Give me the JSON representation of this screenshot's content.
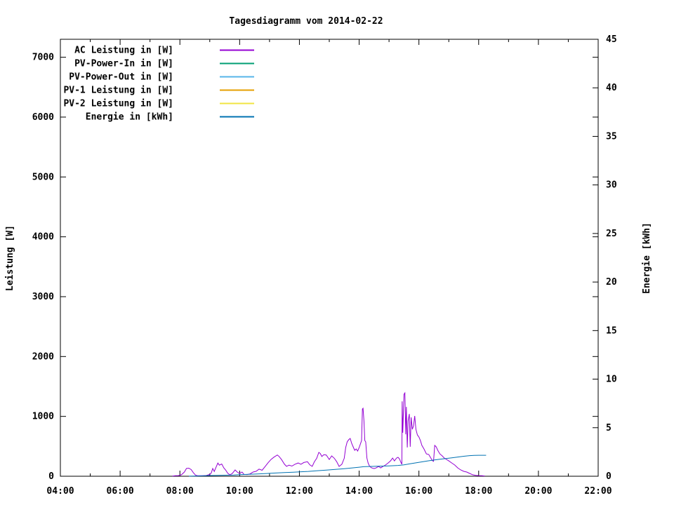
{
  "chart_data": {
    "type": "line",
    "title": "Tagesdiagramm vom 2014-02-22",
    "background_color": "#ffffff",
    "text_color": "#000000",
    "border_color": "#000000",
    "grid": false,
    "legend_position": "top-left-inside",
    "x_axis": {
      "label": "",
      "unit": "hours",
      "range": [
        4,
        22
      ],
      "major_tick_hours": [
        4,
        6,
        8,
        10,
        12,
        14,
        16,
        18,
        20,
        22
      ],
      "major_tick_labels": [
        "04:00",
        "06:00",
        "08:00",
        "10:00",
        "12:00",
        "14:00",
        "16:00",
        "18:00",
        "20:00",
        "22:00"
      ],
      "minor_tick_every_hours": 1
    },
    "y1_axis": {
      "label": "Leistung [W]",
      "range": [
        0,
        7300
      ],
      "ticks": [
        0,
        1000,
        2000,
        3000,
        4000,
        5000,
        6000,
        7000
      ]
    },
    "y2_axis": {
      "label": "Energie [kWh]",
      "range": [
        0,
        45
      ],
      "ticks": [
        0,
        5,
        10,
        15,
        20,
        25,
        30,
        35,
        40,
        45
      ]
    },
    "series": [
      {
        "label": "AC Leistung in [W]",
        "color": "#9400d3",
        "axis": "y1",
        "points": [
          [
            7.75,
            3
          ],
          [
            7.85,
            8
          ],
          [
            7.95,
            10
          ],
          [
            8.05,
            25
          ],
          [
            8.15,
            70
          ],
          [
            8.22,
            130
          ],
          [
            8.3,
            135
          ],
          [
            8.38,
            110
          ],
          [
            8.45,
            60
          ],
          [
            8.52,
            20
          ],
          [
            8.6,
            8
          ],
          [
            8.75,
            8
          ],
          [
            8.88,
            12
          ],
          [
            9.0,
            30
          ],
          [
            9.05,
            55
          ],
          [
            9.1,
            130
          ],
          [
            9.15,
            80
          ],
          [
            9.2,
            140
          ],
          [
            9.27,
            220
          ],
          [
            9.32,
            185
          ],
          [
            9.4,
            205
          ],
          [
            9.47,
            140
          ],
          [
            9.53,
            105
          ],
          [
            9.6,
            50
          ],
          [
            9.67,
            25
          ],
          [
            9.75,
            45
          ],
          [
            9.85,
            105
          ],
          [
            9.92,
            70
          ],
          [
            10.0,
            45
          ],
          [
            10.08,
            70
          ],
          [
            10.15,
            30
          ],
          [
            10.25,
            28
          ],
          [
            10.35,
            40
          ],
          [
            10.45,
            70
          ],
          [
            10.55,
            82
          ],
          [
            10.65,
            120
          ],
          [
            10.75,
            100
          ],
          [
            10.85,
            160
          ],
          [
            10.95,
            225
          ],
          [
            11.05,
            280
          ],
          [
            11.15,
            320
          ],
          [
            11.26,
            355
          ],
          [
            11.32,
            330
          ],
          [
            11.4,
            280
          ],
          [
            11.5,
            200
          ],
          [
            11.57,
            165
          ],
          [
            11.65,
            185
          ],
          [
            11.75,
            170
          ],
          [
            11.85,
            200
          ],
          [
            11.96,
            222
          ],
          [
            12.05,
            200
          ],
          [
            12.15,
            230
          ],
          [
            12.27,
            242
          ],
          [
            12.35,
            190
          ],
          [
            12.43,
            165
          ],
          [
            12.5,
            240
          ],
          [
            12.58,
            300
          ],
          [
            12.65,
            398
          ],
          [
            12.7,
            380
          ],
          [
            12.75,
            330
          ],
          [
            12.82,
            360
          ],
          [
            12.9,
            355
          ],
          [
            13.0,
            280
          ],
          [
            13.08,
            340
          ],
          [
            13.17,
            300
          ],
          [
            13.25,
            242
          ],
          [
            13.33,
            164
          ],
          [
            13.42,
            200
          ],
          [
            13.5,
            300
          ],
          [
            13.55,
            480
          ],
          [
            13.6,
            574
          ],
          [
            13.65,
            610
          ],
          [
            13.7,
            632
          ],
          [
            13.75,
            550
          ],
          [
            13.8,
            492
          ],
          [
            13.85,
            433
          ],
          [
            13.9,
            456
          ],
          [
            13.95,
            421
          ],
          [
            14.0,
            480
          ],
          [
            14.04,
            538
          ],
          [
            14.08,
            597
          ],
          [
            14.11,
            1124
          ],
          [
            14.13,
            1135
          ],
          [
            14.16,
            925
          ],
          [
            14.19,
            597
          ],
          [
            14.22,
            574
          ],
          [
            14.26,
            304
          ],
          [
            14.3,
            222
          ],
          [
            14.35,
            165
          ],
          [
            14.42,
            140
          ],
          [
            14.5,
            128
          ],
          [
            14.57,
            140
          ],
          [
            14.65,
            165
          ],
          [
            14.72,
            140
          ],
          [
            14.8,
            165
          ],
          [
            14.88,
            187
          ],
          [
            14.97,
            222
          ],
          [
            15.05,
            257
          ],
          [
            15.12,
            304
          ],
          [
            15.18,
            257
          ],
          [
            15.25,
            304
          ],
          [
            15.3,
            316
          ],
          [
            15.35,
            290
          ],
          [
            15.4,
            230
          ],
          [
            15.43,
            200
          ],
          [
            15.44,
            1252
          ],
          [
            15.46,
            726
          ],
          [
            15.5,
            1369
          ],
          [
            15.53,
            1392
          ],
          [
            15.56,
            700
          ],
          [
            15.58,
            1159
          ],
          [
            15.61,
            480
          ],
          [
            15.64,
            925
          ],
          [
            15.68,
            1041
          ],
          [
            15.71,
            492
          ],
          [
            15.74,
            983
          ],
          [
            15.78,
            784
          ],
          [
            15.82,
            842
          ],
          [
            15.86,
            1006
          ],
          [
            15.9,
            784
          ],
          [
            15.95,
            690
          ],
          [
            16.0,
            655
          ],
          [
            16.05,
            597
          ],
          [
            16.1,
            515
          ],
          [
            16.17,
            456
          ],
          [
            16.25,
            374
          ],
          [
            16.33,
            363
          ],
          [
            16.4,
            304
          ],
          [
            16.45,
            260
          ],
          [
            16.49,
            250
          ],
          [
            16.53,
            515
          ],
          [
            16.58,
            492
          ],
          [
            16.63,
            433
          ],
          [
            16.7,
            374
          ],
          [
            16.78,
            340
          ],
          [
            16.85,
            304
          ],
          [
            16.92,
            281
          ],
          [
            17.0,
            257
          ],
          [
            17.1,
            222
          ],
          [
            17.2,
            187
          ],
          [
            17.3,
            140
          ],
          [
            17.4,
            105
          ],
          [
            17.5,
            82
          ],
          [
            17.6,
            70
          ],
          [
            17.7,
            47
          ],
          [
            17.8,
            25
          ],
          [
            17.9,
            15
          ],
          [
            18.0,
            10
          ],
          [
            18.1,
            8
          ],
          [
            18.2,
            5
          ]
        ]
      },
      {
        "label": "PV-Power-In in [W]",
        "color": "#009e73",
        "axis": "y1",
        "points": []
      },
      {
        "label": "PV-Power-Out in [W]",
        "color": "#56b4e9",
        "axis": "y1",
        "points": []
      },
      {
        "label": "PV-1 Leistung in [W]",
        "color": "#e69f00",
        "axis": "y1",
        "points": []
      },
      {
        "label": "PV-2 Leistung in [W]",
        "color": "#f0e442",
        "axis": "y1",
        "points": []
      },
      {
        "label": "Energie in [kWh]",
        "color": "#0072b2",
        "axis": "y2",
        "points": [
          [
            8.3,
            0.01
          ],
          [
            8.6,
            0.03
          ],
          [
            9.0,
            0.07
          ],
          [
            9.4,
            0.1
          ],
          [
            9.8,
            0.13
          ],
          [
            10.0,
            0.16
          ],
          [
            10.3,
            0.2
          ],
          [
            10.6,
            0.24
          ],
          [
            10.9,
            0.28
          ],
          [
            11.2,
            0.33
          ],
          [
            11.5,
            0.38
          ],
          [
            11.8,
            0.42
          ],
          [
            12.0,
            0.45
          ],
          [
            12.3,
            0.5
          ],
          [
            12.6,
            0.57
          ],
          [
            12.9,
            0.63
          ],
          [
            13.2,
            0.7
          ],
          [
            13.5,
            0.78
          ],
          [
            13.8,
            0.87
          ],
          [
            14.0,
            0.93
          ],
          [
            14.15,
            0.98
          ],
          [
            14.4,
            1.01
          ],
          [
            14.7,
            1.04
          ],
          [
            15.0,
            1.07
          ],
          [
            15.3,
            1.11
          ],
          [
            15.5,
            1.18
          ],
          [
            15.7,
            1.28
          ],
          [
            15.9,
            1.38
          ],
          [
            16.1,
            1.48
          ],
          [
            16.3,
            1.58
          ],
          [
            16.5,
            1.67
          ],
          [
            16.7,
            1.75
          ],
          [
            16.9,
            1.82
          ],
          [
            17.1,
            1.9
          ],
          [
            17.3,
            1.98
          ],
          [
            17.5,
            2.06
          ],
          [
            17.7,
            2.12
          ],
          [
            17.85,
            2.15
          ],
          [
            18.0,
            2.16
          ],
          [
            18.25,
            2.16
          ]
        ]
      }
    ]
  }
}
